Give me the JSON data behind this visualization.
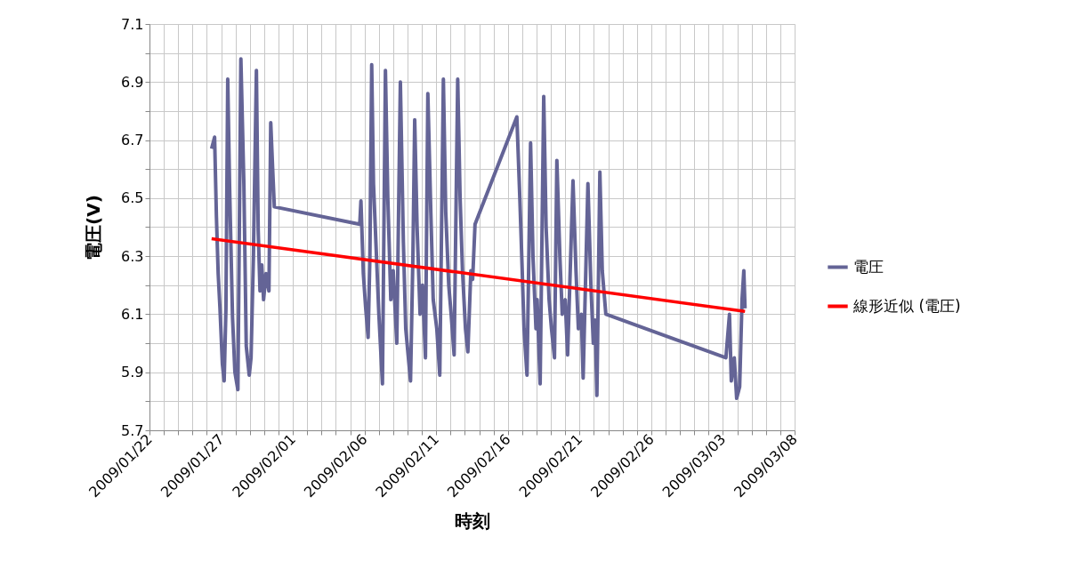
{
  "chart_data": {
    "type": "line",
    "xlabel": "時刻",
    "ylabel": "電圧(V)",
    "xlim": [
      "2009-01-22",
      "2009-03-08"
    ],
    "ylim": [
      5.7,
      7.1
    ],
    "xticks": [
      {
        "value": "2009-01-22",
        "label": "2009/01/22"
      },
      {
        "value": "2009-01-23",
        "label": null
      },
      {
        "value": "2009-01-24",
        "label": null
      },
      {
        "value": "2009-01-25",
        "label": null
      },
      {
        "value": "2009-01-26",
        "label": null
      },
      {
        "value": "2009-01-27",
        "label": "2009/01/27"
      },
      {
        "value": "2009-01-28",
        "label": null
      },
      {
        "value": "2009-01-29",
        "label": null
      },
      {
        "value": "2009-01-30",
        "label": null
      },
      {
        "value": "2009-01-31",
        "label": null
      },
      {
        "value": "2009-02-01",
        "label": "2009/02/01"
      },
      {
        "value": "2009-02-02",
        "label": null
      },
      {
        "value": "2009-02-03",
        "label": null
      },
      {
        "value": "2009-02-04",
        "label": null
      },
      {
        "value": "2009-02-05",
        "label": null
      },
      {
        "value": "2009-02-06",
        "label": "2009/02/06"
      },
      {
        "value": "2009-02-07",
        "label": null
      },
      {
        "value": "2009-02-08",
        "label": null
      },
      {
        "value": "2009-02-09",
        "label": null
      },
      {
        "value": "2009-02-10",
        "label": null
      },
      {
        "value": "2009-02-11",
        "label": "2009/02/11"
      },
      {
        "value": "2009-02-12",
        "label": null
      },
      {
        "value": "2009-02-13",
        "label": null
      },
      {
        "value": "2009-02-14",
        "label": null
      },
      {
        "value": "2009-02-15",
        "label": null
      },
      {
        "value": "2009-02-16",
        "label": "2009/02/16"
      },
      {
        "value": "2009-02-17",
        "label": null
      },
      {
        "value": "2009-02-18",
        "label": null
      },
      {
        "value": "2009-02-19",
        "label": null
      },
      {
        "value": "2009-02-20",
        "label": null
      },
      {
        "value": "2009-02-21",
        "label": "2009/02/21"
      },
      {
        "value": "2009-02-22",
        "label": null
      },
      {
        "value": "2009-02-23",
        "label": null
      },
      {
        "value": "2009-02-24",
        "label": null
      },
      {
        "value": "2009-02-25",
        "label": null
      },
      {
        "value": "2009-02-26",
        "label": "2009/02/26"
      },
      {
        "value": "2009-02-27",
        "label": null
      },
      {
        "value": "2009-02-28",
        "label": null
      },
      {
        "value": "2009-03-01",
        "label": null
      },
      {
        "value": "2009-03-02",
        "label": null
      },
      {
        "value": "2009-03-03",
        "label": "2009/03/03"
      },
      {
        "value": "2009-03-04",
        "label": null
      },
      {
        "value": "2009-03-05",
        "label": null
      },
      {
        "value": "2009-03-06",
        "label": null
      },
      {
        "value": "2009-03-07",
        "label": null
      },
      {
        "value": "2009-03-08",
        "label": "2009/03/08"
      }
    ],
    "yticks": [
      5.7,
      {
        "value": 5.8,
        "label": null
      },
      5.9,
      {
        "value": 6.0,
        "label": null
      },
      6.1,
      {
        "value": 6.2,
        "label": null
      },
      6.3,
      {
        "value": 6.4,
        "label": null
      },
      6.5,
      {
        "value": 6.6,
        "label": null
      },
      6.7,
      {
        "value": 6.8,
        "label": null
      },
      6.9,
      {
        "value": 7.0,
        "label": null
      },
      7.1
    ],
    "grid": true,
    "legend": "right",
    "marker": "none",
    "line_style": "solid",
    "series": [
      {
        "name": "電圧",
        "color": "#646496",
        "x": [
          "2009-01-26T08:00",
          "2009-01-26T13:00",
          "2009-01-26T16:00",
          "2009-01-26T19:00",
          "2009-01-26T22:00",
          "2009-01-27T02:00",
          "2009-01-27T05:00",
          "2009-01-27T08:00",
          "2009-01-27T11:00",
          "2009-01-27T14:00",
          "2009-01-27T19:00",
          "2009-01-27T23:00",
          "2009-01-28T04:00",
          "2009-01-28T09:00",
          "2009-01-28T14:00",
          "2009-01-28T18:00",
          "2009-01-28T23:00",
          "2009-01-29T02:00",
          "2009-01-29T06:00",
          "2009-01-29T11:00",
          "2009-01-29T14:00",
          "2009-01-29T17:00",
          "2009-01-29T20:00",
          "2009-01-29T23:00",
          "2009-01-30T03:00",
          "2009-01-30T08:00",
          "2009-01-30T11:00",
          "2009-01-30T14:00",
          "2009-01-30T17:00",
          "2009-02-05T16:00",
          "2009-02-05T18:00",
          "2009-02-05T22:00",
          "2009-02-06T02:00",
          "2009-02-06T06:00",
          "2009-02-06T09:00",
          "2009-02-06T12:00",
          "2009-02-06T15:00",
          "2009-02-06T20:00",
          "2009-02-07T00:00",
          "2009-02-07T06:00",
          "2009-02-07T11:00",
          "2009-02-07T15:00",
          "2009-02-07T20:00",
          "2009-02-08T00:00",
          "2009-02-08T06:00",
          "2009-02-08T12:00",
          "2009-02-08T17:00",
          "2009-02-08T21:00",
          "2009-02-09T05:00",
          "2009-02-09T09:00",
          "2009-02-09T12:00",
          "2009-02-09T16:00",
          "2009-02-09T21:00",
          "2009-02-10T01:00",
          "2009-02-10T06:00",
          "2009-02-10T10:00",
          "2009-02-10T15:00",
          "2009-02-10T19:00",
          "2009-02-11T01:00",
          "2009-02-11T06:00",
          "2009-02-11T12:00",
          "2009-02-11T16:00",
          "2009-02-11T21:00",
          "2009-02-12T01:00",
          "2009-02-12T06:00",
          "2009-02-12T12:00",
          "2009-02-12T16:00",
          "2009-02-12T20:00",
          "2009-02-13T01:00",
          "2009-02-13T05:00",
          "2009-02-13T10:00",
          "2009-02-13T13:00",
          "2009-02-13T17:00",
          "2009-02-16T15:00",
          "2009-02-16T20:00",
          "2009-02-17T00:00",
          "2009-02-17T03:00",
          "2009-02-17T08:00",
          "2009-02-17T14:00",
          "2009-02-17T18:00",
          "2009-02-17T23:00",
          "2009-02-18T01:00",
          "2009-02-18T06:00",
          "2009-02-18T12:00",
          "2009-02-18T16:00",
          "2009-02-18T21:00",
          "2009-02-19T01:00",
          "2009-02-19T06:00",
          "2009-02-19T10:00",
          "2009-02-19T15:00",
          "2009-02-19T19:00",
          "2009-02-20T00:00",
          "2009-02-20T04:00",
          "2009-02-20T13:00",
          "2009-02-20T18:00",
          "2009-02-20T22:00",
          "2009-02-21T03:00",
          "2009-02-21T06:00",
          "2009-02-21T14:00",
          "2009-02-21T19:00",
          "2009-02-21T23:00",
          "2009-02-22T02:00",
          "2009-02-22T05:00",
          "2009-02-22T10:00",
          "2009-02-22T14:00",
          "2009-02-22T20:00",
          "2009-03-03T05:00",
          "2009-03-03T11:00",
          "2009-03-03T14:00",
          "2009-03-03T19:00",
          "2009-03-03T23:00",
          "2009-03-04T04:00",
          "2009-03-04T08:00",
          "2009-03-04T11:00",
          "2009-03-04T13:00"
        ],
        "values": [
          6.67,
          6.71,
          6.44,
          6.24,
          6.12,
          5.93,
          5.87,
          6.12,
          6.91,
          6.55,
          6.09,
          5.9,
          5.84,
          6.98,
          6.55,
          5.99,
          5.89,
          5.95,
          6.3,
          6.94,
          6.39,
          6.18,
          6.27,
          6.15,
          6.24,
          6.18,
          6.76,
          6.61,
          6.47,
          6.41,
          6.49,
          6.24,
          6.12,
          6.02,
          6.3,
          6.96,
          6.55,
          6.3,
          6.1,
          5.86,
          6.94,
          6.5,
          6.15,
          6.25,
          6.0,
          6.9,
          6.35,
          6.05,
          5.87,
          6.3,
          6.77,
          6.4,
          6.1,
          6.2,
          5.95,
          6.86,
          6.45,
          6.15,
          6.05,
          5.89,
          6.91,
          6.45,
          6.2,
          6.1,
          5.96,
          6.91,
          6.5,
          6.25,
          6.05,
          5.97,
          6.25,
          6.22,
          6.41,
          6.78,
          6.5,
          6.25,
          6.05,
          5.89,
          6.69,
          6.3,
          6.05,
          6.15,
          5.86,
          6.85,
          6.4,
          6.15,
          6.05,
          5.95,
          6.63,
          6.3,
          6.1,
          6.15,
          5.96,
          6.56,
          6.25,
          6.05,
          6.1,
          5.88,
          6.55,
          6.2,
          6.0,
          6.08,
          5.82,
          6.59,
          6.25,
          6.1,
          5.95,
          6.1,
          5.87,
          5.95,
          5.81,
          5.85,
          6.15,
          6.25,
          6.12
        ]
      },
      {
        "name": "線形近似 (電圧)",
        "color": "#ff0000",
        "x": [
          "2009-01-26T08:00",
          "2009-03-04T13:00"
        ],
        "values": [
          6.36,
          6.11
        ]
      }
    ]
  }
}
